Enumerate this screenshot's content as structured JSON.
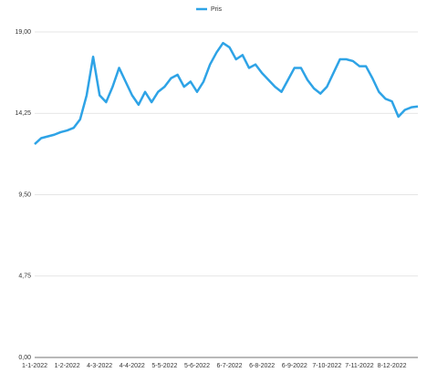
{
  "chart_data": {
    "type": "line",
    "categories": [
      "1-1-2022",
      null,
      null,
      null,
      null,
      "1-2-2022",
      null,
      null,
      null,
      null,
      "4-3-2022",
      null,
      null,
      null,
      null,
      "4-4-2022",
      null,
      null,
      null,
      null,
      "5-5-2022",
      null,
      null,
      null,
      null,
      "5-6-2022",
      null,
      null,
      null,
      null,
      "6-7-2022",
      null,
      null,
      null,
      null,
      "6-8-2022",
      null,
      null,
      null,
      null,
      "6-9-2022",
      null,
      null,
      null,
      null,
      "7-10-2022",
      null,
      null,
      null,
      null,
      "7-11-2022",
      null,
      null,
      null,
      null,
      "8-12-2022",
      null,
      null,
      null,
      null
    ],
    "series": [
      {
        "name": "Pris",
        "color": "#2ea3e6",
        "values": [
          12.45,
          12.8,
          12.9,
          13.0,
          13.15,
          13.25,
          13.4,
          13.9,
          15.3,
          17.55,
          15.3,
          14.9,
          15.8,
          16.9,
          16.1,
          15.3,
          14.75,
          15.5,
          14.9,
          15.5,
          15.8,
          16.3,
          16.5,
          15.8,
          16.1,
          15.5,
          16.1,
          17.1,
          17.8,
          18.35,
          18.1,
          17.4,
          17.65,
          16.9,
          17.1,
          16.6,
          16.2,
          15.8,
          15.5,
          16.2,
          16.9,
          16.9,
          16.2,
          15.7,
          15.4,
          15.8,
          16.6,
          17.4,
          17.4,
          17.3,
          17.0,
          17.0,
          16.3,
          15.5,
          15.1,
          14.95,
          14.05,
          14.45,
          14.6,
          14.65
        ]
      }
    ],
    "ylim": [
      0,
      19
    ],
    "yticks": [
      {
        "value": 0,
        "label": "0,00"
      },
      {
        "value": 4.75,
        "label": "4,75"
      },
      {
        "value": 9.5,
        "label": "9,50"
      },
      {
        "value": 14.25,
        "label": "14,25"
      },
      {
        "value": 19,
        "label": "19,00"
      }
    ],
    "grid": true,
    "legend": "top"
  }
}
